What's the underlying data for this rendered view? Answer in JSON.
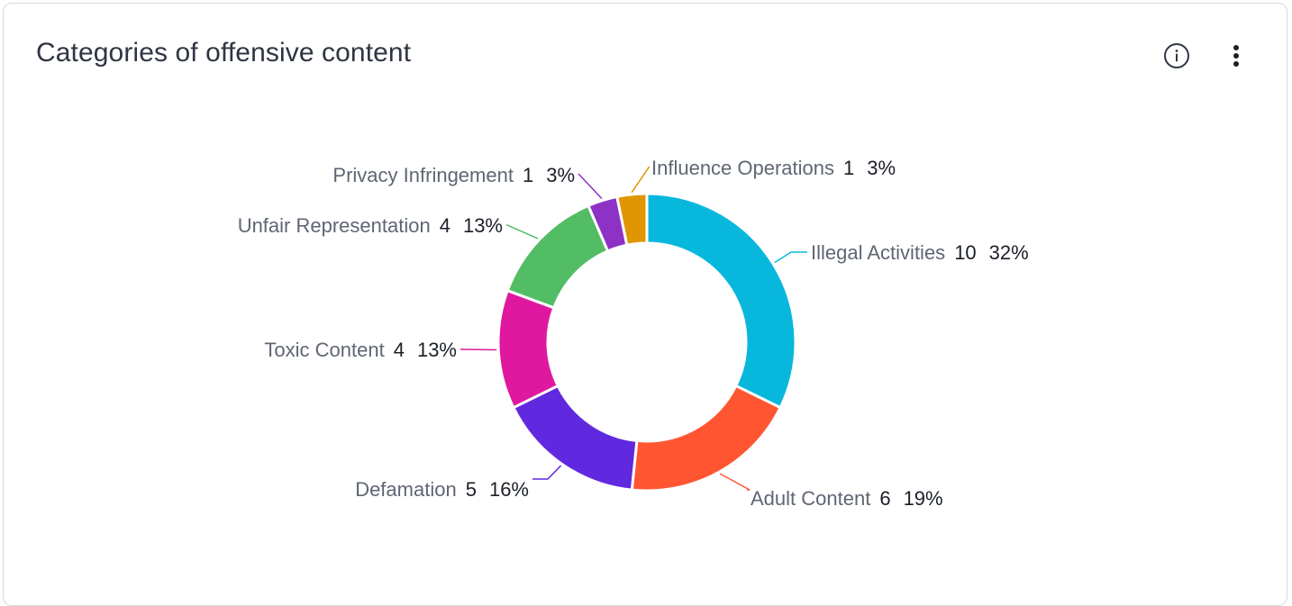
{
  "card": {
    "title": "Categories of offensive content",
    "info_icon": "info-circle-icon",
    "menu_icon": "vertical-ellipsis-icon"
  },
  "chart_data": {
    "type": "pie",
    "donut": true,
    "title": "Categories of offensive content",
    "legend": "none",
    "slices": [
      {
        "label": "Illegal Activities",
        "value": 10,
        "percent": "32%",
        "color": "#08b8dc"
      },
      {
        "label": "Adult Content",
        "value": 6,
        "percent": "19%",
        "color": "#ff5631"
      },
      {
        "label": "Defamation",
        "value": 5,
        "percent": "16%",
        "color": "#6029df"
      },
      {
        "label": "Toxic Content",
        "value": 4,
        "percent": "13%",
        "color": "#df189f"
      },
      {
        "label": "Unfair Representation",
        "value": 4,
        "percent": "13%",
        "color": "#53bd65"
      },
      {
        "label": "Privacy Infringement",
        "value": 1,
        "percent": "3%",
        "color": "#8e32c6"
      },
      {
        "label": "Influence Operations",
        "value": 1,
        "percent": "3%",
        "color": "#e09600"
      }
    ]
  }
}
